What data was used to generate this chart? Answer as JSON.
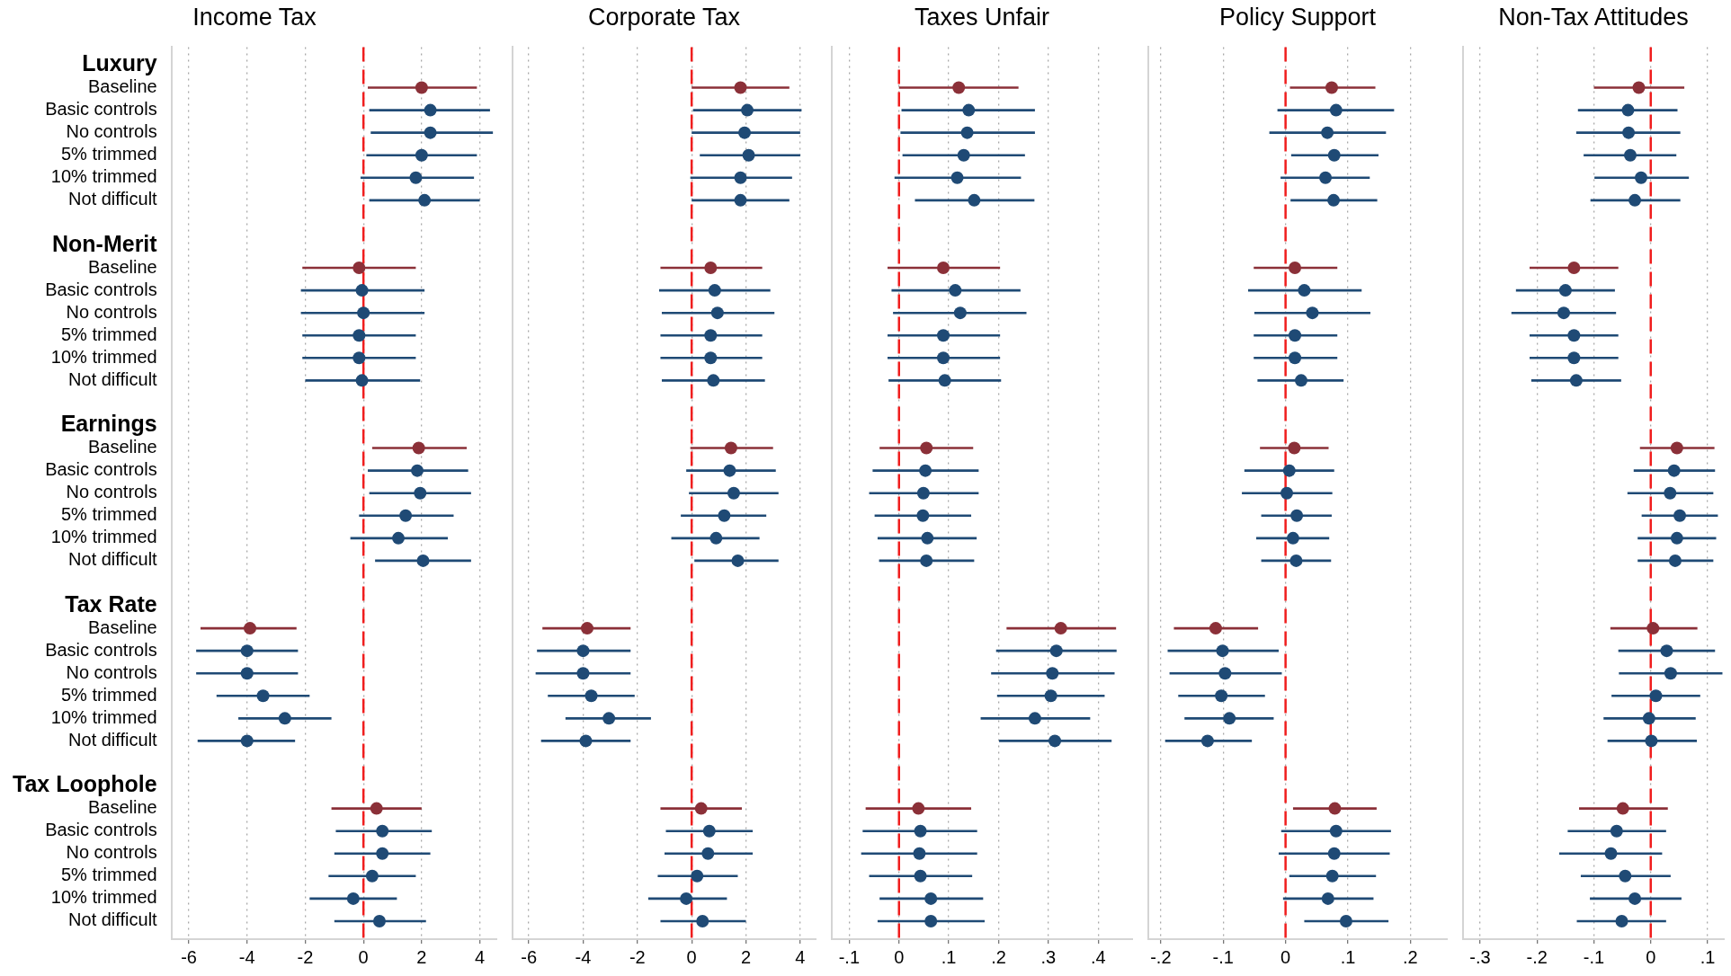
{
  "chart_data": [
    {
      "type": "scatter",
      "orientation": "horizontal",
      "title": "Income Tax",
      "marker": "circle",
      "grid": "x",
      "tick_labels": true,
      "categories": [
        "Luxury",
        "Baseline",
        "Basic controls",
        "No controls",
        "5% trimmed",
        "10% trimmed",
        "Not difficult",
        null,
        "Non-Merit",
        "Baseline",
        "Basic controls",
        "No controls",
        "5% trimmed",
        "10% trimmed",
        "Not difficult",
        null,
        "Earnings",
        "Baseline",
        "Basic controls",
        "No controls",
        "5% trimmed",
        "10% trimmed",
        "Not difficult",
        null,
        "Tax Rate",
        "Baseline",
        "Basic controls",
        "No controls",
        "5% trimmed",
        "10% trimmed",
        "Not difficult",
        null,
        "Tax Loophole",
        "Baseline",
        "Basic controls",
        "No controls",
        "5% trimmed",
        "10% trimmed",
        "Not difficult"
      ],
      "values": [
        null,
        2.0,
        2.3,
        2.3,
        2.0,
        1.8,
        2.1,
        null,
        null,
        -0.15,
        -0.05,
        0,
        -0.15,
        -0.15,
        -0.05,
        null,
        null,
        1.9,
        1.85,
        1.95,
        1.45,
        1.2,
        2.05,
        null,
        null,
        -3.9,
        -4.0,
        -4.0,
        -3.45,
        -2.7,
        -4.0,
        null,
        null,
        0.45,
        0.65,
        0.65,
        0.3,
        -0.35,
        0.55
      ],
      "errors": [
        null,
        [
          0.15,
          3.9
        ],
        [
          0.2,
          4.35
        ],
        [
          0.25,
          4.45
        ],
        [
          0.1,
          3.9
        ],
        [
          -0.1,
          3.8
        ],
        [
          0.2,
          4.0
        ],
        null,
        null,
        [
          -2.1,
          1.8
        ],
        [
          -2.15,
          2.1
        ],
        [
          -2.15,
          2.1
        ],
        [
          -2.1,
          1.8
        ],
        [
          -2.1,
          1.8
        ],
        [
          -2.0,
          1.95
        ],
        null,
        null,
        [
          0.3,
          3.55
        ],
        [
          0.15,
          3.6
        ],
        [
          0.2,
          3.7
        ],
        [
          -0.15,
          3.1
        ],
        [
          -0.45,
          2.9
        ],
        [
          0.4,
          3.7
        ],
        null,
        null,
        [
          -5.6,
          -2.3
        ],
        [
          -5.75,
          -2.25
        ],
        [
          -5.75,
          -2.25
        ],
        [
          -5.05,
          -1.85
        ],
        [
          -4.3,
          -1.1
        ],
        [
          -5.7,
          -2.35
        ],
        null,
        null,
        [
          -1.1,
          2.0
        ],
        [
          -0.95,
          2.35
        ],
        [
          -1.0,
          2.3
        ],
        [
          -1.2,
          1.8
        ],
        [
          -1.85,
          1.15
        ],
        [
          -1.0,
          2.15
        ]
      ],
      "colors": [
        null,
        "#8b3038",
        "#1f4a75",
        "#1f4a75",
        "#1f4a75",
        "#1f4a75",
        "#1f4a75",
        null,
        null,
        "#8b3038",
        "#1f4a75",
        "#1f4a75",
        "#1f4a75",
        "#1f4a75",
        "#1f4a75",
        null,
        null,
        "#8b3038",
        "#1f4a75",
        "#1f4a75",
        "#1f4a75",
        "#1f4a75",
        "#1f4a75",
        null,
        null,
        "#8b3038",
        "#1f4a75",
        "#1f4a75",
        "#1f4a75",
        "#1f4a75",
        "#1f4a75",
        null,
        null,
        "#8b3038",
        "#1f4a75",
        "#1f4a75",
        "#1f4a75",
        "#1f4a75",
        "#1f4a75"
      ],
      "xlim": [
        -6.6,
        4.6
      ],
      "xticks": [
        -6,
        -4,
        -2,
        0,
        2,
        4
      ],
      "ref_lines": [
        {
          "axis": "x",
          "value": 0,
          "color": "#f01e1e",
          "line_style": "dashed"
        }
      ]
    },
    {
      "type": "scatter",
      "orientation": "horizontal",
      "title": "Corporate Tax",
      "marker": "circle",
      "grid": "x",
      "tick_labels": "x",
      "values": [
        null,
        1.8,
        2.05,
        1.95,
        2.1,
        1.8,
        1.8,
        null,
        null,
        0.7,
        0.85,
        0.95,
        0.7,
        0.7,
        0.8,
        null,
        null,
        1.45,
        1.4,
        1.55,
        1.2,
        0.9,
        1.7,
        null,
        null,
        -3.85,
        -4.0,
        -4.0,
        -3.7,
        -3.05,
        -3.9,
        null,
        null,
        0.35,
        0.65,
        0.6,
        0.2,
        -0.2,
        0.4
      ],
      "errors": [
        null,
        [
          0,
          3.6
        ],
        [
          0.05,
          4.05
        ],
        [
          0,
          4.0
        ],
        [
          0.3,
          4.0
        ],
        [
          -0.05,
          3.7
        ],
        [
          0,
          3.6
        ],
        null,
        null,
        [
          -1.15,
          2.6
        ],
        [
          -1.2,
          2.9
        ],
        [
          -1.1,
          3.05
        ],
        [
          -1.15,
          2.6
        ],
        [
          -1.15,
          2.6
        ],
        [
          -1.1,
          2.7
        ],
        null,
        null,
        [
          -0.05,
          3.0
        ],
        [
          -0.2,
          3.1
        ],
        [
          -0.1,
          3.2
        ],
        [
          -0.4,
          2.75
        ],
        [
          -0.75,
          2.5
        ],
        [
          0.1,
          3.2
        ],
        null,
        null,
        [
          -5.5,
          -2.25
        ],
        [
          -5.7,
          -2.25
        ],
        [
          -5.75,
          -2.25
        ],
        [
          -5.3,
          -2.1
        ],
        [
          -4.65,
          -1.5
        ],
        [
          -5.55,
          -2.25
        ],
        null,
        null,
        [
          -1.15,
          1.85
        ],
        [
          -0.95,
          2.25
        ],
        [
          -1.0,
          2.25
        ],
        [
          -1.25,
          1.7
        ],
        [
          -1.6,
          1.3
        ],
        [
          -1.15,
          2.0
        ]
      ],
      "colors": [
        null,
        "#8b3038",
        "#1f4a75",
        "#1f4a75",
        "#1f4a75",
        "#1f4a75",
        "#1f4a75",
        null,
        null,
        "#8b3038",
        "#1f4a75",
        "#1f4a75",
        "#1f4a75",
        "#1f4a75",
        "#1f4a75",
        null,
        null,
        "#8b3038",
        "#1f4a75",
        "#1f4a75",
        "#1f4a75",
        "#1f4a75",
        "#1f4a75",
        null,
        null,
        "#8b3038",
        "#1f4a75",
        "#1f4a75",
        "#1f4a75",
        "#1f4a75",
        "#1f4a75",
        null,
        null,
        "#8b3038",
        "#1f4a75",
        "#1f4a75",
        "#1f4a75",
        "#1f4a75",
        "#1f4a75"
      ],
      "xlim": [
        -6.6,
        4.6
      ],
      "xticks": [
        -6,
        -4,
        -2,
        0,
        2,
        4
      ],
      "ref_lines": [
        {
          "axis": "x",
          "value": 0,
          "color": "#f01e1e",
          "line_style": "dashed"
        }
      ]
    },
    {
      "type": "scatter",
      "orientation": "horizontal",
      "title": "Taxes Unfair",
      "marker": "circle",
      "grid": "x",
      "tick_labels": "x",
      "values": [
        null,
        0.12,
        0.14,
        0.137,
        0.13,
        0.117,
        0.151,
        null,
        null,
        0.089,
        0.113,
        0.123,
        0.089,
        0.089,
        0.092,
        null,
        null,
        0.055,
        0.053,
        0.049,
        0.048,
        0.057,
        0.055,
        null,
        null,
        0.325,
        0.316,
        0.308,
        0.305,
        0.273,
        0.313,
        null,
        null,
        0.039,
        0.043,
        0.041,
        0.043,
        0.064,
        0.064
      ],
      "errors": [
        null,
        [
          0,
          0.24
        ],
        [
          0.005,
          0.273
        ],
        [
          0.003,
          0.273
        ],
        [
          0.007,
          0.253
        ],
        [
          -0.009,
          0.245
        ],
        [
          0.032,
          0.272
        ],
        null,
        null,
        [
          -0.023,
          0.203
        ],
        [
          -0.015,
          0.244
        ],
        [
          -0.012,
          0.256
        ],
        [
          -0.023,
          0.203
        ],
        [
          -0.023,
          0.203
        ],
        [
          -0.021,
          0.205
        ],
        null,
        null,
        [
          -0.039,
          0.149
        ],
        [
          -0.053,
          0.16
        ],
        [
          -0.06,
          0.16
        ],
        [
          -0.049,
          0.145
        ],
        [
          -0.043,
          0.156
        ],
        [
          -0.04,
          0.151
        ],
        null,
        null,
        [
          0.216,
          0.436
        ],
        [
          0.195,
          0.437
        ],
        [
          0.185,
          0.433
        ],
        [
          0.197,
          0.413
        ],
        [
          0.164,
          0.384
        ],
        [
          0.201,
          0.427
        ],
        null,
        null,
        [
          -0.067,
          0.145
        ],
        [
          -0.073,
          0.157
        ],
        [
          -0.076,
          0.157
        ],
        [
          -0.06,
          0.147
        ],
        [
          -0.039,
          0.169
        ],
        [
          -0.043,
          0.172
        ]
      ],
      "colors": [
        null,
        "#8b3038",
        "#1f4a75",
        "#1f4a75",
        "#1f4a75",
        "#1f4a75",
        "#1f4a75",
        null,
        null,
        "#8b3038",
        "#1f4a75",
        "#1f4a75",
        "#1f4a75",
        "#1f4a75",
        "#1f4a75",
        null,
        null,
        "#8b3038",
        "#1f4a75",
        "#1f4a75",
        "#1f4a75",
        "#1f4a75",
        "#1f4a75",
        null,
        null,
        "#8b3038",
        "#1f4a75",
        "#1f4a75",
        "#1f4a75",
        "#1f4a75",
        "#1f4a75",
        null,
        null,
        "#8b3038",
        "#1f4a75",
        "#1f4a75",
        "#1f4a75",
        "#1f4a75",
        "#1f4a75"
      ],
      "xlim": [
        -0.135,
        0.47
      ],
      "xticks": [
        {
          "value": -0.1,
          "label": "-.1"
        },
        0,
        {
          "value": 0.1,
          "label": ".1"
        },
        {
          "value": 0.2,
          "label": ".2"
        },
        {
          "value": 0.3,
          "label": ".3"
        },
        {
          "value": 0.4,
          "label": ".4"
        }
      ],
      "ref_lines": [
        {
          "axis": "x",
          "value": 0,
          "color": "#f01e1e",
          "line_style": "dashed"
        }
      ]
    },
    {
      "type": "scatter",
      "orientation": "horizontal",
      "title": "Policy Support",
      "marker": "circle",
      "grid": "x",
      "tick_labels": "x",
      "values": [
        null,
        0.074,
        0.081,
        0.067,
        0.078,
        0.064,
        0.077,
        null,
        null,
        0.015,
        0.03,
        0.043,
        0.015,
        0.015,
        0.025,
        null,
        null,
        0.014,
        0.006,
        0.002,
        0.018,
        0.012,
        0.017,
        null,
        null,
        -0.112,
        -0.101,
        -0.097,
        -0.103,
        -0.09,
        -0.125,
        null,
        null,
        0.079,
        0.081,
        0.078,
        0.075,
        0.068,
        0.097
      ],
      "errors": [
        null,
        [
          0.007,
          0.144
        ],
        [
          -0.013,
          0.174
        ],
        [
          -0.026,
          0.161
        ],
        [
          0.009,
          0.149
        ],
        [
          -0.008,
          0.135
        ],
        [
          0.008,
          0.147
        ],
        null,
        null,
        [
          -0.051,
          0.083
        ],
        [
          -0.06,
          0.122
        ],
        [
          -0.05,
          0.136
        ],
        [
          -0.051,
          0.083
        ],
        [
          -0.051,
          0.083
        ],
        [
          -0.045,
          0.093
        ],
        null,
        null,
        [
          -0.041,
          0.069
        ],
        [
          -0.066,
          0.078
        ],
        [
          -0.07,
          0.075
        ],
        [
          -0.039,
          0.074
        ],
        [
          -0.047,
          0.07
        ],
        [
          -0.039,
          0.073
        ],
        null,
        null,
        [
          -0.179,
          -0.044
        ],
        [
          -0.189,
          -0.011
        ],
        [
          -0.186,
          -0.006
        ],
        [
          -0.172,
          -0.033
        ],
        [
          -0.162,
          -0.019
        ],
        [
          -0.193,
          -0.054
        ],
        null,
        null,
        [
          0.012,
          0.146
        ],
        [
          -0.007,
          0.169
        ],
        [
          -0.011,
          0.167
        ],
        [
          0.006,
          0.145
        ],
        [
          -0.004,
          0.141
        ],
        [
          0.03,
          0.165
        ]
      ],
      "colors": [
        null,
        "#8b3038",
        "#1f4a75",
        "#1f4a75",
        "#1f4a75",
        "#1f4a75",
        "#1f4a75",
        null,
        null,
        "#8b3038",
        "#1f4a75",
        "#1f4a75",
        "#1f4a75",
        "#1f4a75",
        "#1f4a75",
        null,
        null,
        "#8b3038",
        "#1f4a75",
        "#1f4a75",
        "#1f4a75",
        "#1f4a75",
        "#1f4a75",
        null,
        null,
        "#8b3038",
        "#1f4a75",
        "#1f4a75",
        "#1f4a75",
        "#1f4a75",
        "#1f4a75",
        null,
        null,
        "#8b3038",
        "#1f4a75",
        "#1f4a75",
        "#1f4a75",
        "#1f4a75",
        "#1f4a75"
      ],
      "xlim": [
        -0.22,
        0.26
      ],
      "xticks": [
        {
          "value": -0.2,
          "label": "-.2"
        },
        {
          "value": -0.1,
          "label": "-.1"
        },
        0,
        {
          "value": 0.1,
          "label": ".1"
        },
        {
          "value": 0.2,
          "label": ".2"
        }
      ],
      "ref_lines": [
        {
          "axis": "x",
          "value": 0,
          "color": "#f01e1e",
          "line_style": "dashed"
        }
      ]
    },
    {
      "type": "scatter",
      "orientation": "horizontal",
      "title": "Non-Tax Attitudes",
      "marker": "circle",
      "grid": "x",
      "tick_labels": "x",
      "values": [
        null,
        -0.021,
        -0.04,
        -0.039,
        -0.036,
        -0.017,
        -0.028,
        null,
        null,
        -0.135,
        -0.15,
        -0.153,
        -0.135,
        -0.135,
        -0.131,
        null,
        null,
        0.046,
        0.041,
        0.034,
        0.051,
        0.046,
        0.043,
        null,
        null,
        0.004,
        0.028,
        0.035,
        0.009,
        -0.003,
        0.001,
        null,
        null,
        -0.049,
        -0.06,
        -0.07,
        -0.045,
        -0.028,
        -0.051
      ],
      "errors": [
        null,
        [
          -0.1,
          0.059
        ],
        [
          -0.128,
          0.047
        ],
        [
          -0.131,
          0.052
        ],
        [
          -0.118,
          0.045
        ],
        [
          -0.099,
          0.067
        ],
        [
          -0.106,
          0.052
        ],
        null,
        null,
        [
          -0.213,
          -0.057
        ],
        [
          -0.237,
          -0.063
        ],
        [
          -0.245,
          -0.061
        ],
        [
          -0.213,
          -0.057
        ],
        [
          -0.213,
          -0.057
        ],
        [
          -0.21,
          -0.052
        ],
        null,
        null,
        [
          -0.019,
          0.112
        ],
        [
          -0.03,
          0.113
        ],
        [
          -0.041,
          0.11
        ],
        [
          -0.016,
          0.118
        ],
        [
          -0.023,
          0.115
        ],
        [
          -0.023,
          0.11
        ],
        null,
        null,
        [
          -0.071,
          0.082
        ],
        [
          -0.057,
          0.113
        ],
        [
          -0.056,
          0.126
        ],
        [
          -0.069,
          0.087
        ],
        [
          -0.083,
          0.079
        ],
        [
          -0.076,
          0.081
        ],
        null,
        null,
        [
          -0.126,
          0.03
        ],
        [
          -0.146,
          0.027
        ],
        [
          -0.161,
          0.02
        ],
        [
          -0.123,
          0.035
        ],
        [
          -0.107,
          0.054
        ],
        [
          -0.13,
          0.027
        ]
      ],
      "colors": [
        null,
        "#8b3038",
        "#1f4a75",
        "#1f4a75",
        "#1f4a75",
        "#1f4a75",
        "#1f4a75",
        null,
        null,
        "#8b3038",
        "#1f4a75",
        "#1f4a75",
        "#1f4a75",
        "#1f4a75",
        "#1f4a75",
        null,
        null,
        "#8b3038",
        "#1f4a75",
        "#1f4a75",
        "#1f4a75",
        "#1f4a75",
        "#1f4a75",
        null,
        null,
        "#8b3038",
        "#1f4a75",
        "#1f4a75",
        "#1f4a75",
        "#1f4a75",
        "#1f4a75",
        null,
        null,
        "#8b3038",
        "#1f4a75",
        "#1f4a75",
        "#1f4a75",
        "#1f4a75",
        "#1f4a75"
      ],
      "xlim": [
        -0.33,
        0.13
      ],
      "xticks": [
        {
          "value": -0.3,
          "label": "-.3"
        },
        {
          "value": -0.2,
          "label": "-.2"
        },
        {
          "value": -0.1,
          "label": "-.1"
        },
        0,
        {
          "value": 0.1,
          "label": ".1"
        }
      ],
      "ref_lines": [
        {
          "axis": "x",
          "value": 0,
          "color": "#f01e1e",
          "line_style": "dashed"
        }
      ]
    }
  ]
}
